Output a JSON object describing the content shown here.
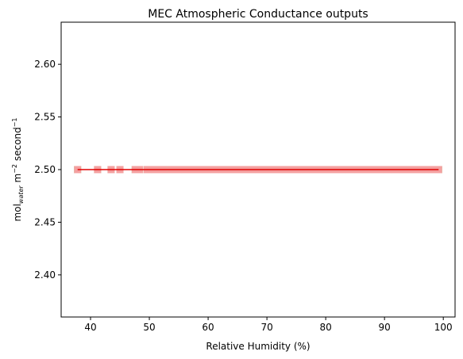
{
  "chart_data": {
    "type": "scatter",
    "title": "MEC Atmospheric Conductance outputs",
    "xlabel": "Relative Humidity (%)",
    "ylabel": {
      "base": "mol",
      "sub": "water",
      "mid": " m",
      "sup1": "−2",
      "tail": " second",
      "sup2": "−1"
    },
    "xlim": [
      35,
      102
    ],
    "ylim": [
      2.36,
      2.64
    ],
    "xticks": [
      40,
      50,
      60,
      70,
      80,
      90,
      100
    ],
    "yticks": [
      2.4,
      2.45,
      2.5,
      2.55,
      2.6
    ],
    "grid": false,
    "series": [
      {
        "kind": "scatter",
        "marker": "square",
        "color": "#90ee90",
        "x": [
          37.8,
          41.2,
          43.5,
          45.0,
          47.6,
          48.3,
          49.6,
          50.3,
          51.0,
          51.7,
          52.4,
          53.6,
          54.2,
          55.3,
          56.1,
          56.8,
          57.5,
          58.2,
          58.9,
          59.6,
          60.3,
          61.0,
          61.7,
          62.4,
          63.1,
          63.8,
          64.5,
          65.2,
          65.9,
          66.6,
          67.3,
          68.0,
          68.7,
          69.4,
          70.1,
          70.8,
          71.5,
          72.2,
          72.9,
          73.6,
          74.3,
          75.0,
          75.7,
          76.4,
          77.1,
          77.8,
          78.5,
          79.2,
          79.9,
          80.6,
          81.3,
          82.0,
          82.7,
          83.4,
          84.1,
          84.8,
          85.5,
          86.2,
          86.9,
          87.6,
          88.3,
          89.0,
          89.7,
          90.4,
          91.1,
          91.8,
          92.5,
          93.2,
          93.9,
          94.6,
          95.3,
          96.0,
          96.7,
          97.4,
          98.1,
          98.8,
          99.2
        ],
        "y": 2.5
      },
      {
        "kind": "scatter",
        "marker": "square",
        "color": "#f4a0a0",
        "x": [
          37.8,
          41.2,
          43.5,
          45.0,
          47.6,
          48.3,
          49.6,
          50.3,
          51.0,
          51.7,
          52.4,
          53.6,
          54.2,
          55.3,
          56.1,
          56.8,
          57.5,
          58.2,
          58.9,
          59.6,
          60.3,
          61.0,
          61.7,
          62.4,
          63.1,
          63.8,
          64.5,
          65.2,
          65.9,
          66.6,
          67.3,
          68.0,
          68.7,
          69.4,
          70.1,
          70.8,
          71.5,
          72.2,
          72.9,
          73.6,
          74.3,
          75.0,
          75.7,
          76.4,
          77.1,
          77.8,
          78.5,
          79.2,
          79.9,
          80.6,
          81.3,
          82.0,
          82.7,
          83.4,
          84.1,
          84.8,
          85.5,
          86.2,
          86.9,
          87.6,
          88.3,
          89.0,
          89.7,
          90.4,
          91.1,
          91.8,
          92.5,
          93.2,
          93.9,
          94.6,
          95.3,
          96.0,
          96.7,
          97.4,
          98.1,
          98.8,
          99.2
        ],
        "y": 2.5
      },
      {
        "kind": "line",
        "color": "#e00000",
        "x": [
          37.8,
          99.2
        ],
        "y": [
          2.5,
          2.5
        ]
      }
    ]
  }
}
